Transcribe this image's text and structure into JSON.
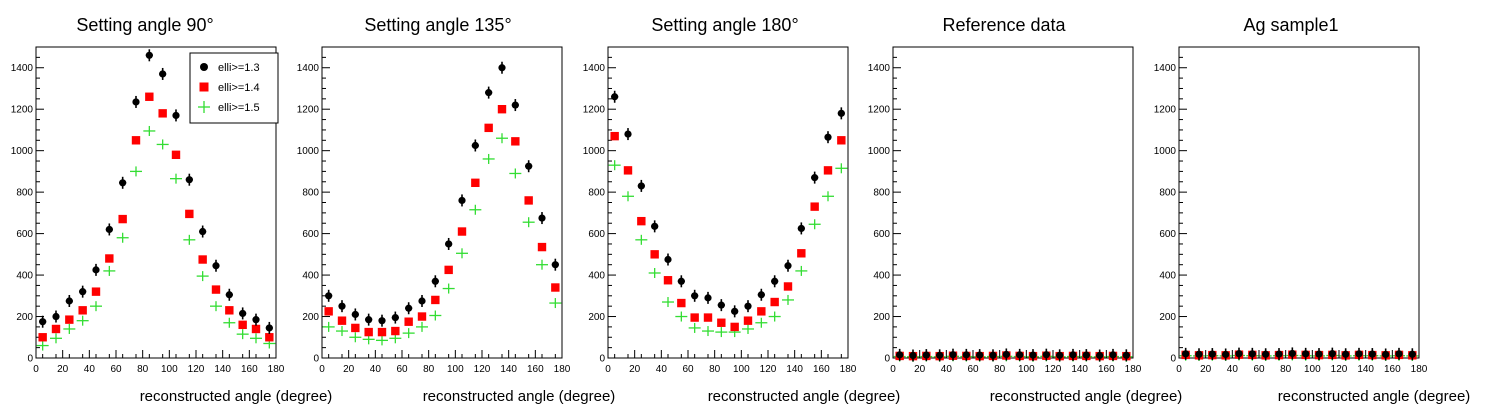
{
  "figure_title": "",
  "chart_data": [
    {
      "type": "scatter",
      "title": "Setting angle 90°",
      "xlabel": "reconstructed angle (degree)",
      "ylabel": "",
      "xlim": [
        0,
        180
      ],
      "ylim": [
        0,
        1500
      ],
      "xticks": [
        0,
        20,
        40,
        60,
        80,
        100,
        120,
        140,
        160,
        180
      ],
      "yticks": [
        0,
        200,
        400,
        600,
        800,
        1000,
        1200,
        1400
      ],
      "x": [
        5,
        15,
        25,
        35,
        45,
        55,
        65,
        75,
        85,
        95,
        105,
        115,
        125,
        135,
        145,
        155,
        165,
        175
      ],
      "legend": {
        "placement": "top-right",
        "entries": [
          "elli>=1.3",
          "elli>=1.4",
          "elli>=1.5"
        ]
      },
      "series": [
        {
          "name": "elli>=1.3",
          "color": "#000000",
          "marker": "circle",
          "values": [
            175,
            200,
            275,
            320,
            425,
            620,
            845,
            1235,
            1460,
            1370,
            1170,
            860,
            610,
            445,
            305,
            215,
            185,
            145
          ]
        },
        {
          "name": "elli>=1.4",
          "color": "#ff0000",
          "marker": "square",
          "values": [
            100,
            140,
            185,
            230,
            320,
            480,
            670,
            1050,
            1260,
            1180,
            980,
            695,
            475,
            330,
            230,
            160,
            140,
            100
          ]
        },
        {
          "name": "elli>=1.5",
          "color": "#33dd33",
          "marker": "cross",
          "values": [
            60,
            95,
            140,
            180,
            250,
            420,
            580,
            900,
            1095,
            1030,
            865,
            570,
            395,
            250,
            170,
            115,
            95,
            70
          ]
        }
      ]
    },
    {
      "type": "scatter",
      "title": "Setting angle 135°",
      "xlabel": "reconstructed angle (degree)",
      "ylabel": "",
      "xlim": [
        0,
        180
      ],
      "ylim": [
        0,
        1500
      ],
      "xticks": [
        0,
        20,
        40,
        60,
        80,
        100,
        120,
        140,
        160,
        180
      ],
      "yticks": [
        0,
        200,
        400,
        600,
        800,
        1000,
        1200,
        1400
      ],
      "x": [
        5,
        15,
        25,
        35,
        45,
        55,
        65,
        75,
        85,
        95,
        105,
        115,
        125,
        135,
        145,
        155,
        165,
        175
      ],
      "series": [
        {
          "name": "elli>=1.3",
          "color": "#000000",
          "marker": "circle",
          "values": [
            300,
            250,
            210,
            185,
            180,
            195,
            240,
            275,
            370,
            550,
            760,
            1025,
            1280,
            1400,
            1220,
            925,
            675,
            450
          ]
        },
        {
          "name": "elli>=1.4",
          "color": "#ff0000",
          "marker": "square",
          "values": [
            225,
            180,
            145,
            125,
            125,
            130,
            175,
            200,
            280,
            425,
            610,
            845,
            1110,
            1200,
            1045,
            760,
            535,
            340
          ]
        },
        {
          "name": "elli>=1.5",
          "color": "#33dd33",
          "marker": "cross",
          "values": [
            150,
            130,
            100,
            90,
            85,
            95,
            120,
            150,
            205,
            335,
            505,
            715,
            960,
            1060,
            890,
            655,
            450,
            265
          ]
        }
      ]
    },
    {
      "type": "scatter",
      "title": "Setting angle 180°",
      "xlabel": "reconstructed angle (degree)",
      "ylabel": "",
      "xlim": [
        0,
        180
      ],
      "ylim": [
        0,
        1500
      ],
      "xticks": [
        0,
        20,
        40,
        60,
        80,
        100,
        120,
        140,
        160,
        180
      ],
      "yticks": [
        0,
        200,
        400,
        600,
        800,
        1000,
        1200,
        1400
      ],
      "x": [
        5,
        15,
        25,
        35,
        45,
        55,
        65,
        75,
        85,
        95,
        105,
        115,
        125,
        135,
        145,
        155,
        165,
        175
      ],
      "series": [
        {
          "name": "elli>=1.3",
          "color": "#000000",
          "marker": "circle",
          "values": [
            1260,
            1080,
            830,
            635,
            475,
            370,
            300,
            290,
            255,
            225,
            250,
            305,
            370,
            445,
            625,
            870,
            1065,
            1180
          ]
        },
        {
          "name": "elli>=1.4",
          "color": "#ff0000",
          "marker": "square",
          "values": [
            1070,
            905,
            660,
            500,
            375,
            265,
            195,
            195,
            170,
            150,
            180,
            225,
            270,
            345,
            505,
            730,
            905,
            1050
          ]
        },
        {
          "name": "elli>=1.5",
          "color": "#33dd33",
          "marker": "cross",
          "values": [
            930,
            780,
            570,
            410,
            270,
            200,
            145,
            130,
            125,
            125,
            140,
            170,
            200,
            280,
            420,
            645,
            780,
            915
          ]
        }
      ]
    },
    {
      "type": "scatter",
      "title": "Reference data",
      "xlabel": "reconstructed angle (degree)",
      "ylabel": "",
      "xlim": [
        0,
        180
      ],
      "ylim": [
        0,
        1500
      ],
      "xticks": [
        0,
        20,
        40,
        60,
        80,
        100,
        120,
        140,
        160,
        180
      ],
      "yticks": [
        0,
        200,
        400,
        600,
        800,
        1000,
        1200,
        1400
      ],
      "x": [
        5,
        15,
        25,
        35,
        45,
        55,
        65,
        75,
        85,
        95,
        105,
        115,
        125,
        135,
        145,
        155,
        165,
        175
      ],
      "series": [
        {
          "name": "elli>=1.3",
          "color": "#000000",
          "marker": "circle",
          "values": [
            15,
            12,
            14,
            13,
            16,
            15,
            14,
            13,
            17,
            15,
            14,
            16,
            13,
            15,
            14,
            12,
            15,
            13
          ]
        },
        {
          "name": "elli>=1.4",
          "color": "#ff0000",
          "marker": "square",
          "values": [
            10,
            9,
            10,
            9,
            11,
            10,
            9,
            10,
            12,
            10,
            9,
            11,
            9,
            10,
            10,
            9,
            10,
            9
          ]
        },
        {
          "name": "elli>=1.5",
          "color": "#33dd33",
          "marker": "cross",
          "values": [
            7,
            6,
            7,
            6,
            8,
            7,
            6,
            7,
            8,
            7,
            6,
            8,
            6,
            7,
            7,
            6,
            7,
            6
          ]
        }
      ]
    },
    {
      "type": "scatter",
      "title": "Ag sample1",
      "xlabel": "reconstructed angle (degree)",
      "ylabel": "",
      "xlim": [
        0,
        180
      ],
      "ylim": [
        0,
        1500
      ],
      "xticks": [
        0,
        20,
        40,
        60,
        80,
        100,
        120,
        140,
        160,
        180
      ],
      "yticks": [
        0,
        200,
        400,
        600,
        800,
        1000,
        1200,
        1400
      ],
      "x": [
        5,
        15,
        25,
        35,
        45,
        55,
        65,
        75,
        85,
        95,
        105,
        115,
        125,
        135,
        145,
        155,
        165,
        175
      ],
      "series": [
        {
          "name": "elli>=1.3",
          "color": "#000000",
          "marker": "circle",
          "values": [
            20,
            18,
            19,
            17,
            21,
            20,
            18,
            19,
            22,
            20,
            19,
            21,
            18,
            20,
            19,
            17,
            20,
            18
          ]
        },
        {
          "name": "elli>=1.4",
          "color": "#ff0000",
          "marker": "square",
          "values": [
            15,
            13,
            14,
            13,
            16,
            15,
            13,
            14,
            16,
            15,
            14,
            15,
            13,
            15,
            14,
            13,
            15,
            13
          ]
        },
        {
          "name": "elli>=1.5",
          "color": "#33dd33",
          "marker": "cross",
          "values": [
            11,
            10,
            11,
            10,
            12,
            11,
            10,
            11,
            12,
            11,
            10,
            12,
            10,
            11,
            11,
            10,
            11,
            10
          ]
        }
      ]
    }
  ]
}
